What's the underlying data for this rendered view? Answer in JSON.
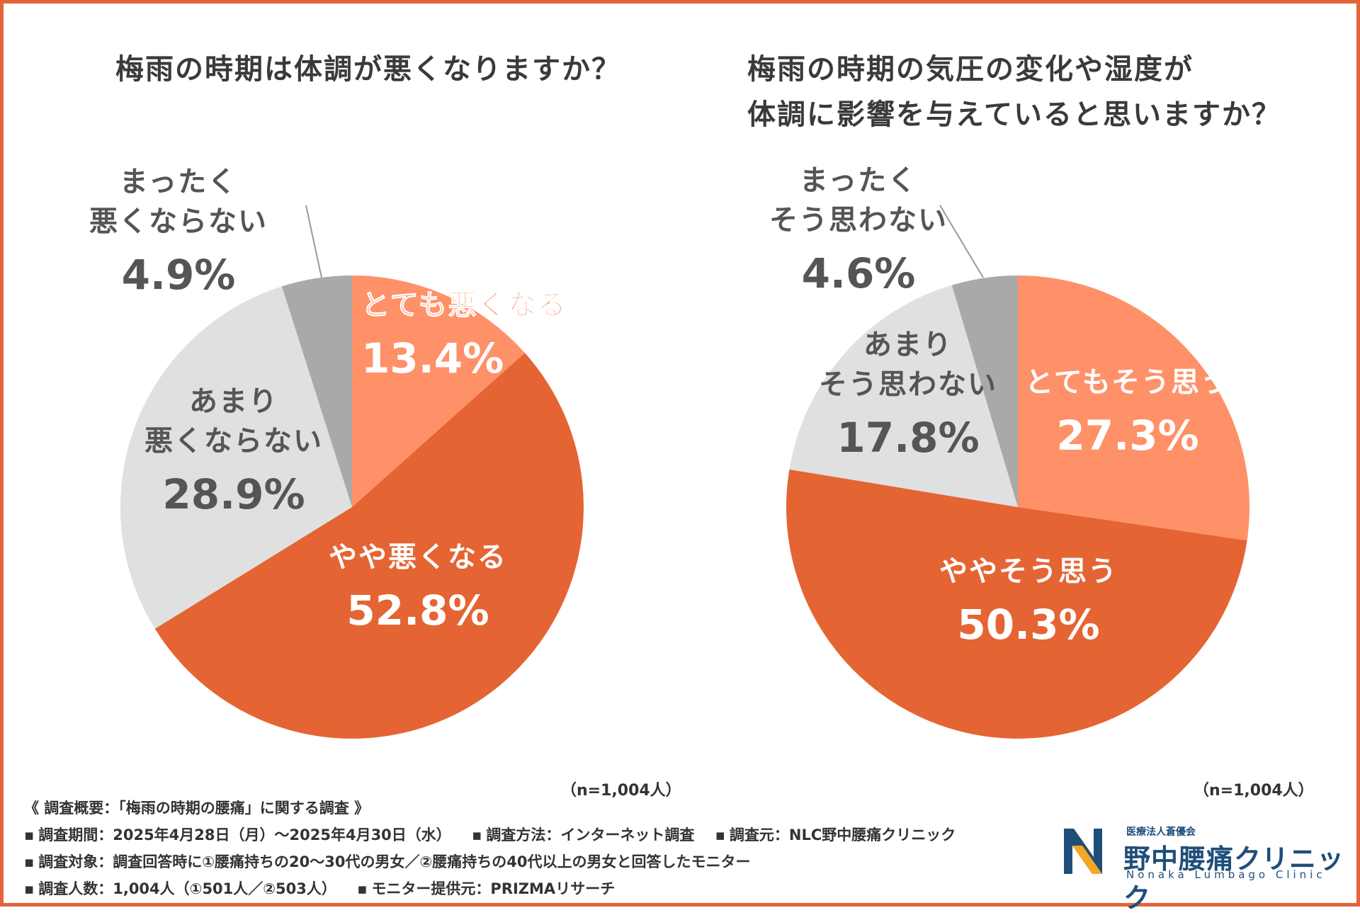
{
  "chart_data": [
    {
      "type": "pie",
      "title": "梅雨の時期は体調が悪くなりますか？",
      "n_label": "（n=1,004人）",
      "slices": [
        {
          "lines": [
            "とても悪くなる"
          ],
          "value": 13.4,
          "pct": "13.4%",
          "color": "#FF9168",
          "text_color": "#FF9168"
        },
        {
          "lines": [
            "やや悪くなる"
          ],
          "value": 52.8,
          "pct": "52.8%",
          "color": "#E56433",
          "text_color": "#ffffff"
        },
        {
          "lines": [
            "あまり",
            "悪くならない"
          ],
          "value": 28.9,
          "pct": "28.9%",
          "color": "#E0E0E0",
          "text_color": "#555555"
        },
        {
          "lines": [
            "まったく",
            "悪くならない"
          ],
          "value": 4.9,
          "pct": "4.9%",
          "color": "#A9A9A9",
          "text_color": "#555555"
        }
      ]
    },
    {
      "type": "pie",
      "title": "梅雨の時期の気圧の変化や湿度が体調に影響を与えていると思いますか？",
      "title_lines": [
        "梅雨の時期の気圧の変化や湿度が",
        "体調に影響を与えていると思いますか？"
      ],
      "n_label": "（n=1,004人）",
      "slices": [
        {
          "lines": [
            "とてもそう思う"
          ],
          "value": 27.3,
          "pct": "27.3%",
          "color": "#FF9168",
          "text_color": "#ffffff"
        },
        {
          "lines": [
            "ややそう思う"
          ],
          "value": 50.3,
          "pct": "50.3%",
          "color": "#E56433",
          "text_color": "#ffffff"
        },
        {
          "lines": [
            "あまり",
            "そう思わない"
          ],
          "value": 17.8,
          "pct": "17.8%",
          "color": "#E0E0E0",
          "text_color": "#555555"
        },
        {
          "lines": [
            "まったく",
            "そう思わない"
          ],
          "value": 4.6,
          "pct": "4.6%",
          "color": "#A9A9A9",
          "text_color": "#555555"
        }
      ]
    }
  ],
  "footer": {
    "heading": "《 調査概要：「梅雨の時期の腰痛」に関する調査 》",
    "period": "調査期間：2025年4月28日（月）～2025年4月30日（水）",
    "method": "調査方法：インターネット調査",
    "source": "調査元：NLC野中腰痛クリニック",
    "target": "調査対象：調査回答時に①腰痛持ちの20～30代の男女／②腰痛持ちの40代以上の男女と回答したモニター",
    "count": "調査人数：1,004人（①501人／②503人）",
    "provider": "モニター提供元：PRIZMAリサーチ",
    "bullet": "▪"
  },
  "logo": {
    "small": "医療法人蒼優会",
    "name": "野中腰痛クリニック",
    "en": "Nonaka Lumbago Clinic"
  }
}
